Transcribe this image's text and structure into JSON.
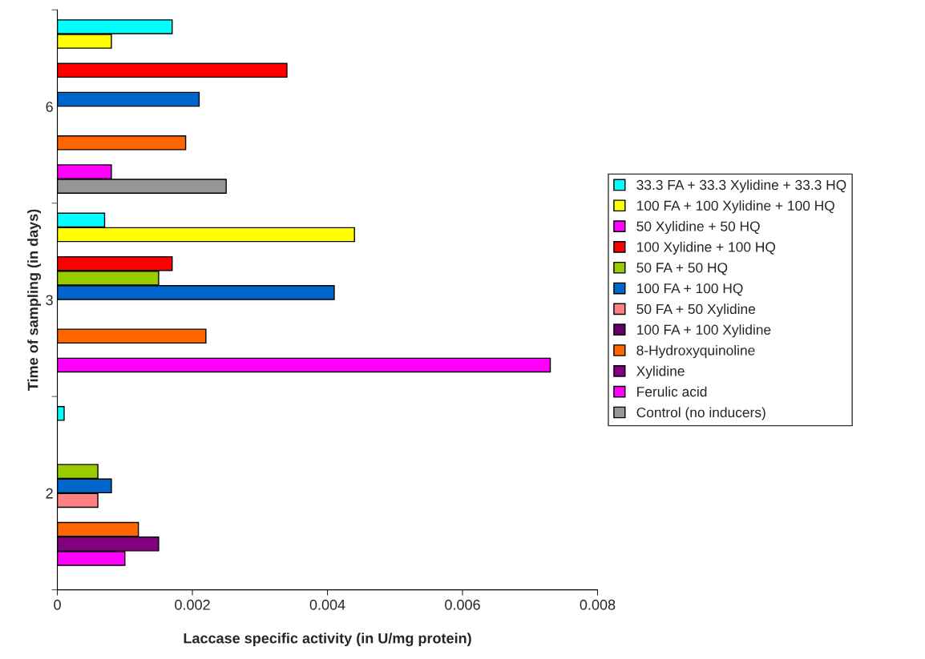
{
  "chart_data": {
    "type": "bar",
    "orientation": "horizontal",
    "xlabel": "Laccase specific activity (in U/mg protein)",
    "ylabel": "Time of sampling (in days)",
    "categories": [
      "6",
      "3",
      "2"
    ],
    "xlim": [
      0,
      0.008
    ],
    "xticks": [
      0,
      0.002,
      0.004,
      0.006,
      0.008
    ],
    "grid": false,
    "legend": "right",
    "series": [
      {
        "name": "33.3 FA + 33.3 Xylidine + 33.3 HQ",
        "color": "#00ffff",
        "values": [
          0.0017,
          0.0007,
          0.0001
        ]
      },
      {
        "name": "100 FA + 100 Xylidine + 100 HQ",
        "color": "#ffff00",
        "values": [
          0.0008,
          0.0044,
          null
        ]
      },
      {
        "name": "50 Xylidine + 50 HQ",
        "color": "#ff00ff",
        "values": [
          null,
          null,
          null
        ]
      },
      {
        "name": "100 Xylidine + 100 HQ",
        "color": "#ff0000",
        "values": [
          0.0034,
          0.0017,
          null
        ]
      },
      {
        "name": "50 FA + 50 HQ",
        "color": "#99cc00",
        "values": [
          null,
          0.0015,
          0.0006
        ]
      },
      {
        "name": "100 FA + 100 HQ",
        "color": "#0066cc",
        "values": [
          0.0021,
          0.0041,
          0.0008
        ]
      },
      {
        "name": "50 FA + 50 Xylidine",
        "color": "#ff8080",
        "values": [
          null,
          null,
          0.0006
        ]
      },
      {
        "name": "100 FA + 100 Xylidine",
        "color": "#660066",
        "values": [
          null,
          null,
          null
        ]
      },
      {
        "name": "8-Hydroxyquinoline",
        "color": "#ff6600",
        "values": [
          0.0019,
          0.0022,
          0.0012
        ]
      },
      {
        "name": "Xylidine",
        "color": "#800080",
        "values": [
          null,
          null,
          0.0015
        ]
      },
      {
        "name": "Ferulic acid",
        "color": "#ff00ff",
        "values": [
          0.0008,
          0.0073,
          0.001
        ]
      },
      {
        "name": "Control (no inducers)",
        "color": "#969696",
        "values": [
          0.0025,
          null,
          null
        ]
      }
    ]
  }
}
